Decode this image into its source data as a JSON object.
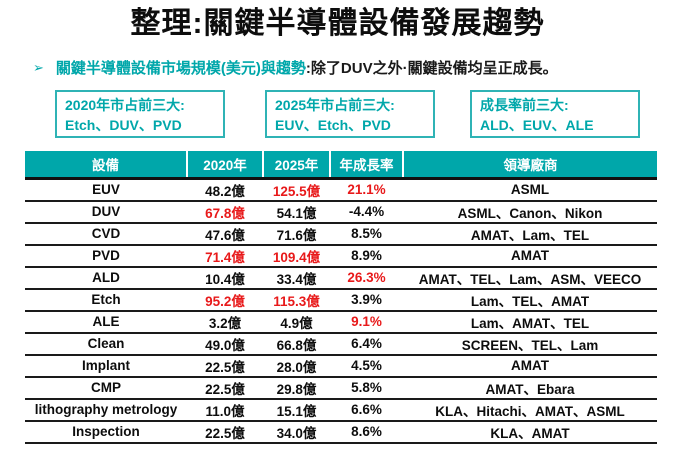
{
  "title": "整理:關鍵半導體設備發展趨勢",
  "bullet": {
    "marker": "➢",
    "highlight": "關鍵半導體設備市場規模(美元)與趨勢",
    "rest": ":除了DUV之外·關鍵設備均呈正成長。"
  },
  "callouts": [
    {
      "line1": "2020年市占前三大:",
      "line2": "Etch、DUV、PVD"
    },
    {
      "line1": "2025年市占前三大:",
      "line2": "EUV、Etch、PVD"
    },
    {
      "line1": "成長率前三大:",
      "line2": "ALD、EUV、ALE"
    }
  ],
  "colors": {
    "teal": "#00A7AA",
    "red": "#E8191A",
    "header_text": "#FFFFFF",
    "body_text": "#0D0D0D"
  },
  "table": {
    "headers": [
      "設備",
      "2020年",
      "2025年",
      "年成長率",
      "領導廠商"
    ],
    "rows": [
      {
        "cells": [
          "EUV",
          "48.2億",
          "125.5億",
          "21.1%",
          "ASML"
        ],
        "red": [
          2,
          3
        ]
      },
      {
        "cells": [
          "DUV",
          "67.8億",
          "54.1億",
          "-4.4%",
          "ASML、Canon、Nikon"
        ],
        "red": [
          1
        ]
      },
      {
        "cells": [
          "CVD",
          "47.6億",
          "71.6億",
          "8.5%",
          "AMAT、Lam、TEL"
        ],
        "red": []
      },
      {
        "cells": [
          "PVD",
          "71.4億",
          "109.4億",
          "8.9%",
          "AMAT"
        ],
        "red": [
          1,
          2
        ]
      },
      {
        "cells": [
          "ALD",
          "10.4億",
          "33.4億",
          "26.3%",
          "AMAT、TEL、Lam、ASM、VEECO"
        ],
        "red": [
          3
        ]
      },
      {
        "cells": [
          "Etch",
          "95.2億",
          "115.3億",
          "3.9%",
          "Lam、TEL、AMAT"
        ],
        "red": [
          1,
          2
        ]
      },
      {
        "cells": [
          "ALE",
          "3.2億",
          "4.9億",
          "9.1%",
          "Lam、AMAT、TEL"
        ],
        "red": [
          3
        ]
      },
      {
        "cells": [
          "Clean",
          "49.0億",
          "66.8億",
          "6.4%",
          "SCREEN、TEL、Lam"
        ],
        "red": []
      },
      {
        "cells": [
          "Implant",
          "22.5億",
          "28.0億",
          "4.5%",
          "AMAT"
        ],
        "red": []
      },
      {
        "cells": [
          "CMP",
          "22.5億",
          "29.8億",
          "5.8%",
          "AMAT、Ebara"
        ],
        "red": []
      },
      {
        "cells": [
          "lithography metrology",
          "11.0億",
          "15.1億",
          "6.6%",
          "KLA、Hitachi、AMAT、ASML"
        ],
        "red": []
      },
      {
        "cells": [
          "Inspection",
          "22.5億",
          "34.0億",
          "8.6%",
          "KLA、AMAT"
        ],
        "red": []
      }
    ]
  }
}
